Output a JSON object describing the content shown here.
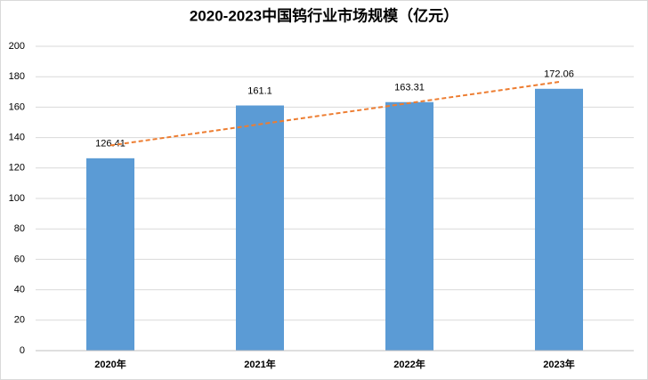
{
  "chart_data": {
    "type": "bar",
    "title": "2020-2023中国钨行业市场规模（亿元）",
    "categories": [
      "2020年",
      "2021年",
      "2022年",
      "2023年"
    ],
    "values": [
      126.41,
      161.1,
      163.31,
      172.06
    ],
    "color": "#5b9bd5",
    "ylim": [
      0,
      200
    ],
    "yticks": [
      0,
      20,
      40,
      60,
      80,
      100,
      120,
      140,
      160,
      180,
      200
    ],
    "grid": true,
    "trendline": {
      "kind": "linear",
      "color": "#ed7d31",
      "dashed": true
    }
  }
}
